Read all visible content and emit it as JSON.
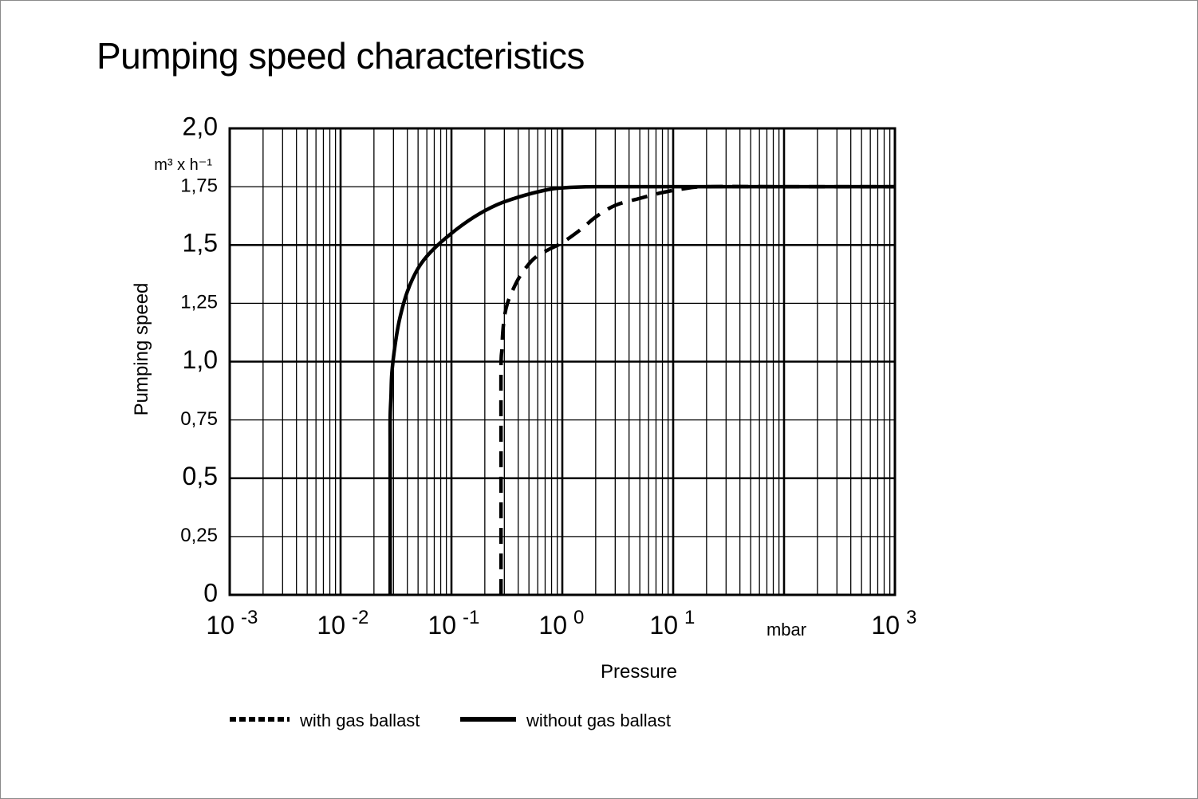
{
  "title": "Pumping speed characteristics",
  "colors": {
    "line": "#000000",
    "grid": "#000000",
    "frame_border": "#8a8a8a"
  },
  "chart_data": {
    "type": "line",
    "title": "Pumping speed characteristics",
    "xlabel": "Pressure",
    "ylabel": "Pumping speed",
    "x_unit": "mbar",
    "y_unit": "m³ x h⁻¹",
    "x_scale": "log",
    "xlim": [
      0.001,
      1000
    ],
    "ylim": [
      0,
      2.0
    ],
    "grid": true,
    "legend_position": "bottom",
    "x_ticks": [
      {
        "base": "10",
        "exp": "-3"
      },
      {
        "base": "10",
        "exp": "-2"
      },
      {
        "base": "10",
        "exp": "-1"
      },
      {
        "base": "10",
        "exp": "0"
      },
      {
        "base": "10",
        "exp": "1"
      },
      {
        "base": "10",
        "exp": "3"
      }
    ],
    "y_ticks": [
      {
        "value": 2.0,
        "label": "2,0",
        "major": true
      },
      {
        "value": 1.75,
        "label": "1,75",
        "major": false
      },
      {
        "value": 1.5,
        "label": "1,5",
        "major": true
      },
      {
        "value": 1.25,
        "label": "1,25",
        "major": false
      },
      {
        "value": 1.0,
        "label": "1,0",
        "major": true
      },
      {
        "value": 0.75,
        "label": "0,75",
        "major": false
      },
      {
        "value": 0.5,
        "label": "0,5",
        "major": true
      },
      {
        "value": 0.25,
        "label": "0,25",
        "major": false
      },
      {
        "value": 0,
        "label": "0",
        "major": true
      }
    ],
    "series": [
      {
        "name": "without gas ballast",
        "style": "solid",
        "points": [
          [
            0.028,
            0
          ],
          [
            0.028,
            0.6
          ],
          [
            0.028,
            0.76
          ],
          [
            0.0285,
            0.85
          ],
          [
            0.029,
            0.95
          ],
          [
            0.031,
            1.07
          ],
          [
            0.034,
            1.18
          ],
          [
            0.04,
            1.3
          ],
          [
            0.05,
            1.4
          ],
          [
            0.065,
            1.47
          ],
          [
            0.1,
            1.55
          ],
          [
            0.16,
            1.62
          ],
          [
            0.25,
            1.67
          ],
          [
            0.4,
            1.705
          ],
          [
            0.7,
            1.735
          ],
          [
            1.0,
            1.745
          ],
          [
            2.0,
            1.75
          ],
          [
            10,
            1.75
          ],
          [
            100,
            1.75
          ],
          [
            1000,
            1.75
          ]
        ]
      },
      {
        "name": "with gas ballast",
        "style": "dashed",
        "points": [
          [
            0.28,
            0
          ],
          [
            0.28,
            0.6
          ],
          [
            0.28,
            0.97
          ],
          [
            0.285,
            1.05
          ],
          [
            0.29,
            1.12
          ],
          [
            0.3,
            1.19
          ],
          [
            0.32,
            1.25
          ],
          [
            0.36,
            1.31
          ],
          [
            0.42,
            1.37
          ],
          [
            0.55,
            1.44
          ],
          [
            0.75,
            1.48
          ],
          [
            1.0,
            1.51
          ],
          [
            1.5,
            1.57
          ],
          [
            2.0,
            1.62
          ],
          [
            3.0,
            1.67
          ],
          [
            5.0,
            1.7
          ],
          [
            8.0,
            1.725
          ],
          [
            12,
            1.74
          ],
          [
            20,
            1.75
          ],
          [
            100,
            1.75
          ],
          [
            1000,
            1.75
          ]
        ]
      }
    ]
  }
}
